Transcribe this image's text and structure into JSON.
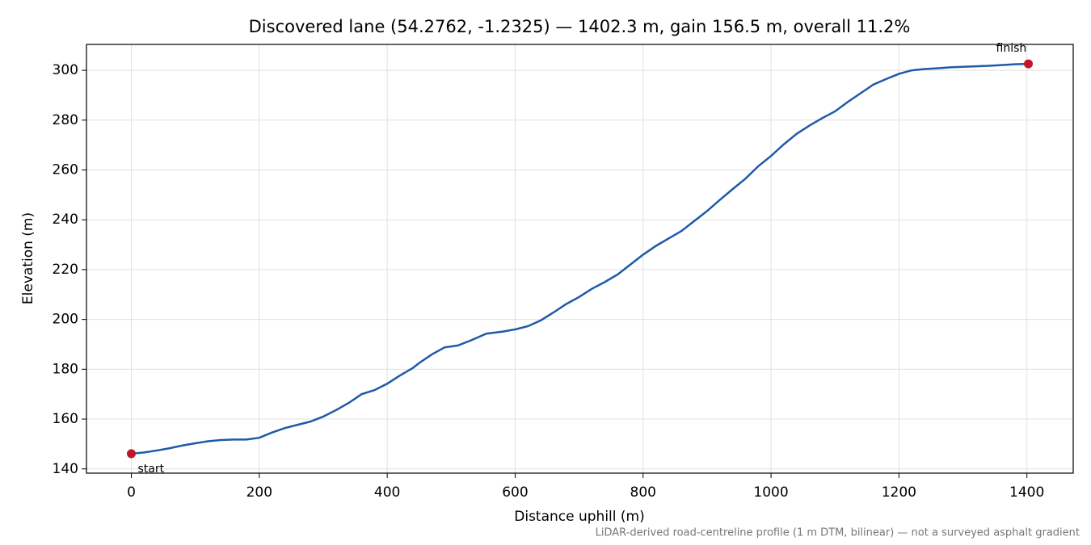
{
  "chart_data": {
    "type": "line",
    "title": "Discovered lane (54.2762, -1.2325) — 1402.3 m, gain 156.5 m, overall 11.2%",
    "x_label": "Distance uphill (m)",
    "y_label": "Elevation (m)",
    "footnote": "LiDAR-derived road-centreline profile (1 m DTM, bilinear) — not a surveyed asphalt gradient",
    "grid": true,
    "xlim": [
      -70.1,
      1472.4
    ],
    "ylim": [
      138.3,
      310.4
    ],
    "xticks": [
      0,
      200,
      400,
      600,
      800,
      1000,
      1200,
      1400
    ],
    "yticks": [
      140,
      160,
      180,
      200,
      220,
      240,
      260,
      280,
      300
    ],
    "series": [
      {
        "color": "#1f5aa8",
        "x": [
          0,
          20,
          40,
          60,
          80,
          100,
          120,
          140,
          160,
          180,
          200,
          220,
          240,
          260,
          280,
          300,
          320,
          340,
          360,
          380,
          400,
          420,
          440,
          450,
          470,
          490,
          510,
          530,
          555,
          580,
          600,
          620,
          640,
          660,
          680,
          700,
          720,
          740,
          760,
          780,
          800,
          820,
          840,
          860,
          880,
          900,
          920,
          940,
          960,
          980,
          1000,
          1020,
          1040,
          1060,
          1080,
          1100,
          1120,
          1140,
          1160,
          1180,
          1200,
          1220,
          1240,
          1260,
          1280,
          1300,
          1320,
          1340,
          1360,
          1380,
          1402.3
        ],
        "values": [
          146.1,
          146.6,
          147.4,
          148.3,
          149.4,
          150.3,
          151.1,
          151.6,
          151.8,
          151.8,
          152.5,
          154.6,
          156.4,
          157.7,
          159.0,
          161.0,
          163.6,
          166.5,
          170.0,
          171.6,
          174.2,
          177.5,
          180.5,
          182.5,
          186.0,
          188.8,
          189.5,
          191.5,
          194.3,
          195.1,
          196.0,
          197.3,
          199.6,
          202.8,
          206.2,
          209.0,
          212.3,
          215.0,
          218.0,
          222.0,
          226.0,
          229.5,
          232.5,
          235.5,
          239.5,
          243.5,
          248.0,
          252.3,
          256.5,
          261.5,
          265.6,
          270.3,
          274.5,
          277.8,
          280.8,
          283.5,
          287.3,
          290.8,
          294.3,
          296.5,
          298.6,
          300.0,
          300.5,
          300.8,
          301.2,
          301.4,
          301.6,
          301.8,
          302.1,
          302.4,
          302.6
        ]
      }
    ],
    "endpoints": {
      "color": "#c0182a",
      "x": [
        0,
        1402.3
      ],
      "values": [
        146.1,
        302.6
      ],
      "labels": [
        "start",
        "finish"
      ]
    }
  }
}
